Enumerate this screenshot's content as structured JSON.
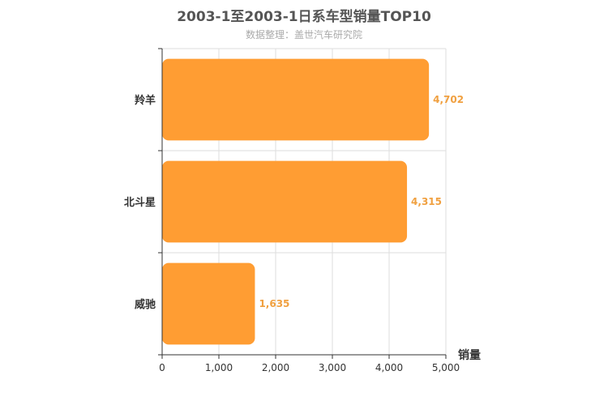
{
  "chart_data": {
    "type": "bar",
    "orientation": "horizontal",
    "title": "2003-1至2003-1日系车型销量TOP10",
    "subtitle": "数据整理：盖世汽车研究院",
    "categories": [
      "羚羊",
      "北斗星",
      "威驰"
    ],
    "values": [
      4702,
      4315,
      1635
    ],
    "value_labels": [
      "4,702",
      "4,315",
      "1,635"
    ],
    "xlabel": "销量",
    "ylabel": "",
    "xlim": [
      0,
      5000
    ],
    "xticks": [
      0,
      1000,
      2000,
      3000,
      4000,
      5000
    ],
    "xtick_labels": [
      "0",
      "1,000",
      "2,000",
      "3,000",
      "4,000",
      "5,000"
    ],
    "grid": true,
    "legend": "none",
    "colors": {
      "bar": "#ff9d33",
      "value_label": "#f0a040",
      "title": "#555555",
      "subtitle": "#aaaaaa",
      "axis": "#333333",
      "grid": "#dddddd"
    }
  }
}
